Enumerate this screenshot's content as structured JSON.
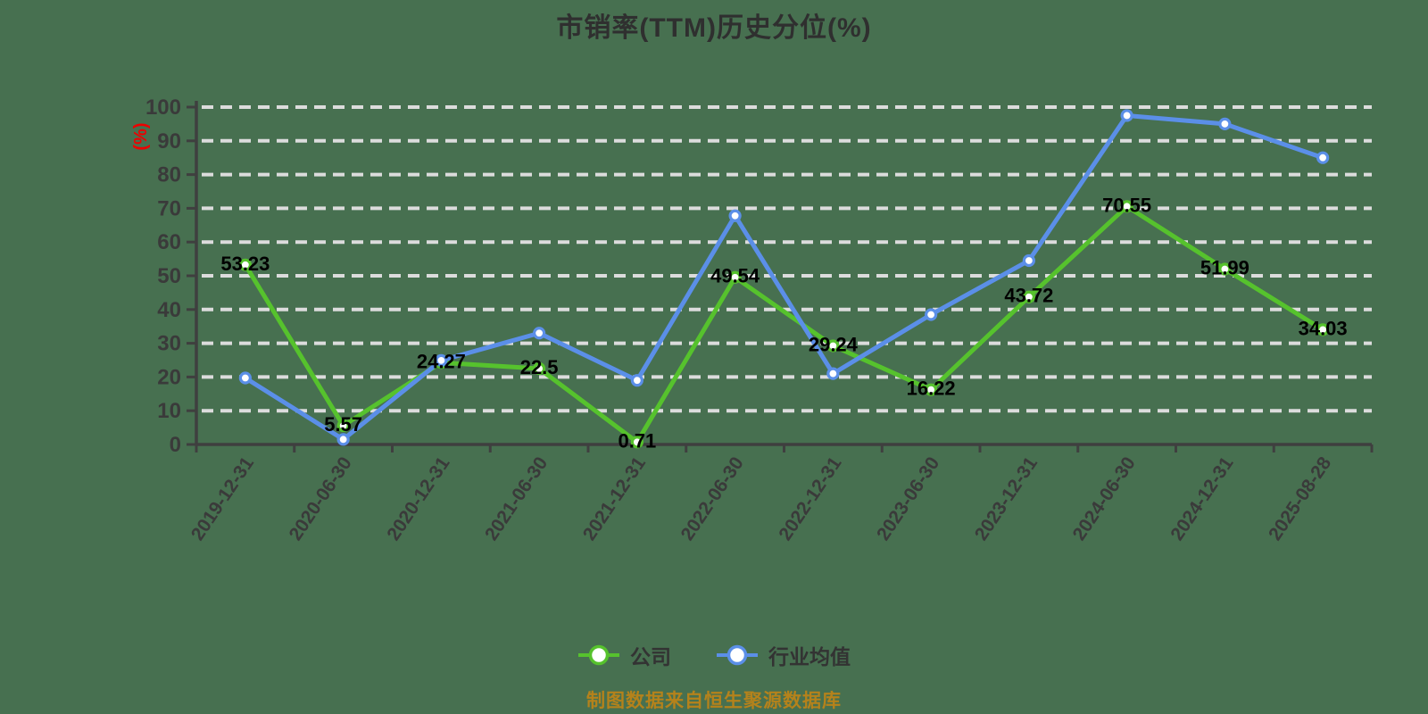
{
  "title": "市销率(TTM)历史分位(%)",
  "y_axis_name": "(%)",
  "footer": {
    "caption": "制图数据来自恒生聚源数据库"
  },
  "colors": {
    "background": "#477050",
    "title": "#2f2f2f",
    "axis": "#3f3f3f",
    "grid": "#dcdcdc",
    "tick_label": "#3a3a3a",
    "point_label": "#000000",
    "marker_fill": "#ffffff",
    "axis_name": "#ee0000",
    "legend_text": "#333333",
    "caption": "#b5821b",
    "series_company": "#56c22d",
    "series_industry": "#5b8fe8"
  },
  "chart_data": {
    "type": "line",
    "title": "市销率(TTM)历史分位(%)",
    "ylabel": "(%)",
    "xlabel": "",
    "ylim": [
      0,
      100
    ],
    "y_ticks": [
      0,
      10,
      20,
      30,
      40,
      50,
      60,
      70,
      80,
      90,
      100
    ],
    "grid": "dashed-horizontal",
    "legend_position": "bottom",
    "categories": [
      "2019-12-31",
      "2020-06-30",
      "2020-12-31",
      "2021-06-30",
      "2021-12-31",
      "2022-06-30",
      "2022-12-31",
      "2023-06-30",
      "2023-12-31",
      "2024-06-30",
      "2024-12-31",
      "2025-08-28"
    ],
    "series": [
      {
        "name": "公司",
        "color": "#56c22d",
        "marker": "circle",
        "show_point_labels": true,
        "values": [
          53.23,
          5.57,
          24.27,
          22.5,
          0.71,
          49.54,
          29.24,
          16.22,
          43.72,
          70.55,
          51.99,
          34.03
        ]
      },
      {
        "name": "行业均值",
        "color": "#5b8fe8",
        "marker": "circle",
        "show_point_labels": false,
        "values": [
          19.7,
          1.5,
          24.9,
          33,
          19,
          67.8,
          21,
          38.5,
          54.5,
          97.5,
          95,
          85
        ]
      }
    ]
  }
}
